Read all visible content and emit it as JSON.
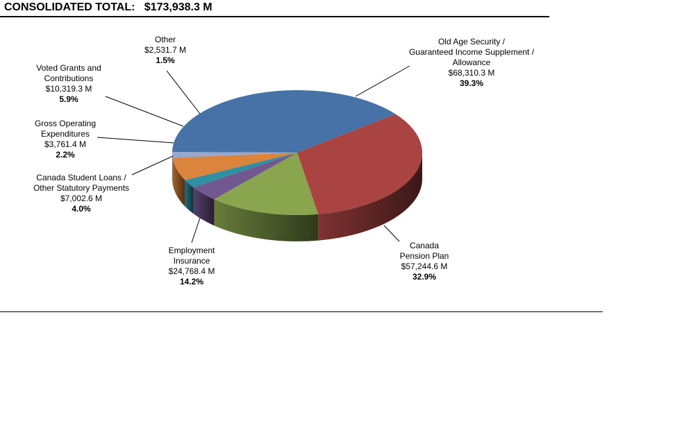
{
  "header": {
    "label": "CONSOLIDATED TOTAL:",
    "value": "$173,938.3 M"
  },
  "chart_data": {
    "type": "pie",
    "title": "",
    "slices": [
      {
        "name_lines": [
          "Old Age Security /",
          "Guaranteed Income Supplement /",
          "Allowance"
        ],
        "amount": "$68,310.3 M",
        "value": 68310.3,
        "percent": "39.3%",
        "color": "#4672A8"
      },
      {
        "name_lines": [
          "Canada",
          "Pension Plan"
        ],
        "amount": "$57,244.6 M",
        "value": 57244.6,
        "percent": "32.9%",
        "color": "#A94442"
      },
      {
        "name_lines": [
          "Employment",
          "Insurance"
        ],
        "amount": "$24,768.4 M",
        "value": 24768.4,
        "percent": "14.2%",
        "color": "#89A54E"
      },
      {
        "name_lines": [
          "Canada Student Loans /",
          "Other Statutory Payments"
        ],
        "amount": "$7,002.6 M",
        "value": 7002.6,
        "percent": "4.0%",
        "color": "#71588F"
      },
      {
        "name_lines": [
          "Gross Operating",
          "Expenditures"
        ],
        "amount": "$3,761.4 M",
        "value": 3761.4,
        "percent": "2.2%",
        "color": "#2F8FA3"
      },
      {
        "name_lines": [
          "Voted Grants and",
          "Contributions"
        ],
        "amount": "$10,319.3 M",
        "value": 10319.3,
        "percent": "5.9%",
        "color": "#DB843D"
      },
      {
        "name_lines": [
          "Other"
        ],
        "amount": "$2,531.7 M",
        "value": 2531.7,
        "percent": "1.5%",
        "color": "#93A9CF"
      }
    ]
  }
}
